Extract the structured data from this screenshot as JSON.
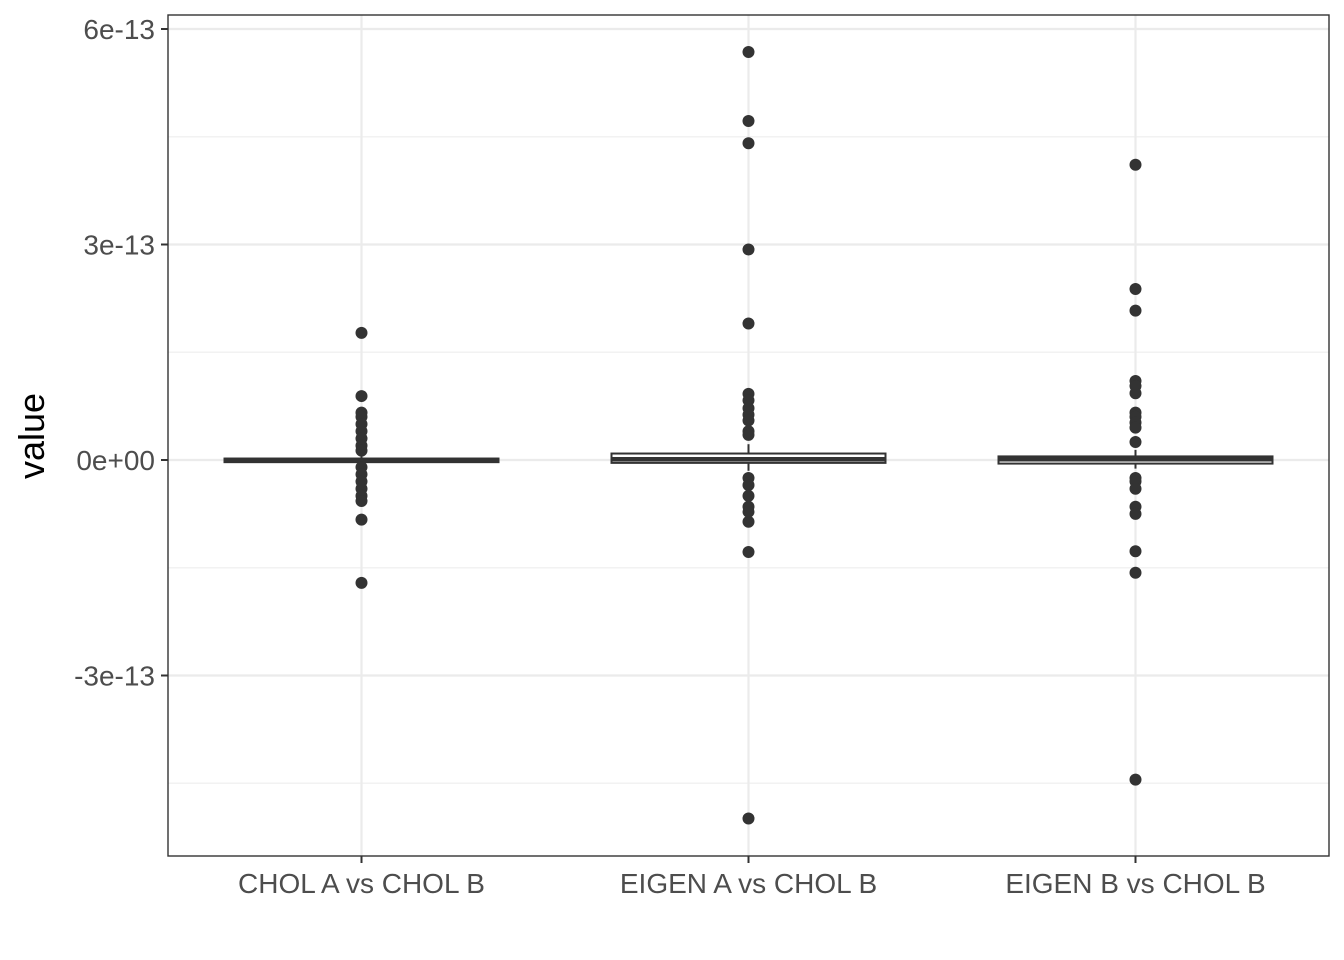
{
  "chart_data": {
    "type": "boxplot",
    "title": "",
    "xlabel": "",
    "ylabel": "value",
    "ylim": [
      -6.1e-13,
      6.1e-13
    ],
    "y_ticks": [
      -3e-13,
      0,
      3e-13,
      6e-13
    ],
    "y_tick_labels": [
      "-3e-13",
      "0e+00",
      "3e-13",
      "6e-13"
    ],
    "categories": [
      "CHOL A vs CHOL B",
      "EIGEN A vs CHOL B",
      "EIGEN B vs CHOL B"
    ],
    "grid": true,
    "legend": "none",
    "colors": {
      "box": "#333333",
      "point": "#333333",
      "grid_major": "#ebebeb",
      "grid_minor": "#f2f2f2",
      "panel_border": "#333333"
    },
    "boxes": [
      {
        "category": "CHOL A vs CHOL B",
        "q1": -3e-15,
        "median": 0,
        "q3": 2e-15,
        "whisker_low": -6e-15,
        "whisker_high": 5e-15
      },
      {
        "category": "EIGEN A vs CHOL B",
        "q1": -4e-15,
        "median": 1e-15,
        "q3": 9e-15,
        "whisker_low": -1.5e-14,
        "whisker_high": 2.2e-14
      },
      {
        "category": "EIGEN B vs CHOL B",
        "q1": -5e-15,
        "median": 1e-15,
        "q3": 5e-15,
        "whisker_low": -1.2e-14,
        "whisker_high": 1.4e-14
      }
    ],
    "outliers": [
      {
        "category": "CHOL A vs CHOL B",
        "values": [
          1.77e-13,
          8.9e-14,
          6.6e-14,
          6e-14,
          5e-14,
          4e-14,
          3e-14,
          2e-14,
          1.3e-14,
          -1e-14,
          -2e-14,
          -3e-14,
          -4e-14,
          -5e-14,
          -5.7e-14,
          -8.3e-14,
          -1.71e-13
        ]
      },
      {
        "category": "EIGEN A vs CHOL B",
        "values": [
          5.68e-13,
          4.72e-13,
          4.41e-13,
          2.93e-13,
          1.9e-13,
          9.2e-14,
          8.3e-14,
          7.2e-14,
          6.3e-14,
          5.5e-14,
          4e-14,
          3.5e-14,
          -2.5e-14,
          -3.5e-14,
          -5e-14,
          -6.5e-14,
          -7.2e-14,
          -8.6e-14,
          -1.28e-13,
          -4.99e-13
        ]
      },
      {
        "category": "EIGEN B vs CHOL B",
        "values": [
          4.11e-13,
          2.38e-13,
          2.08e-13,
          1.1e-13,
          1.03e-13,
          9.3e-14,
          6.6e-14,
          6e-14,
          5.2e-14,
          4.5e-14,
          2.5e-14,
          -2.5e-14,
          -3e-14,
          -4e-14,
          -6.5e-14,
          -7.5e-14,
          -1.27e-13,
          -1.57e-13,
          -4.45e-13
        ]
      }
    ]
  }
}
